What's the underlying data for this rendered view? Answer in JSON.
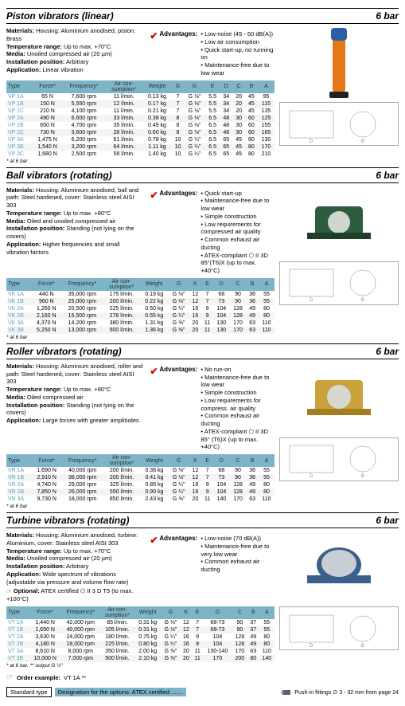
{
  "sections": [
    {
      "title": "Piston vibrators (linear)",
      "bar": "6 bar",
      "desc": [
        [
          "Materials:",
          " Housing: Aluminium anodised, piston: Brass"
        ],
        [
          "Temperature range:",
          " Up to max. +70°C"
        ],
        [
          "Media:",
          " Unoiled compressed air (20 µm)"
        ],
        [
          "Installation position:",
          " Arbitrary"
        ],
        [
          "Application:",
          " Linear vibration"
        ]
      ],
      "advantages": [
        "Low-noise (45 - 60 dB(A))",
        "Low air consumption",
        "Quick start-up, no running on",
        "Maintenance-free due to low wear"
      ],
      "headers": [
        "Type",
        "Force*",
        "Frequency*",
        "Air con-\nsumption*",
        "Weight",
        "G",
        "G",
        "E",
        "D",
        "C",
        "B",
        "A"
      ],
      "rows": [
        [
          "VP 1A",
          "65 N",
          "7,600 rpm",
          "11 l/min.",
          "0.13 kg",
          "7",
          "G ⅛\"",
          "5.5",
          "34",
          "20",
          "45",
          "95"
        ],
        [
          "VP 1B",
          "150 N",
          "5,550 rpm",
          "12 l/min.",
          "0.17 kg",
          "7",
          "G ⅛\"",
          "5.5",
          "34",
          "20",
          "45",
          "115"
        ],
        [
          "VP 1C",
          "210 N",
          "4,100 rpm",
          "11 l/min.",
          "0.21 kg",
          "7",
          "G ⅛\"",
          "5.5",
          "34",
          "20",
          "45",
          "135"
        ],
        [
          "VP 2A",
          "490 N",
          "6,600 rpm",
          "33 l/min.",
          "0.38 kg",
          "8",
          "G ⅛\"",
          "6.5",
          "48",
          "30",
          "60",
          "125"
        ],
        [
          "VP 2B",
          "650 N",
          "4,700 rpm",
          "35 l/min.",
          "0.49 kg",
          "8",
          "G ⅛\"",
          "6.5",
          "48",
          "30",
          "60",
          "155"
        ],
        [
          "VP 2C",
          "730 N",
          "3,600 rpm",
          "28 l/min.",
          "0.60 kg",
          "8",
          "G ⅛\"",
          "6.5",
          "48",
          "30",
          "60",
          "185"
        ],
        [
          "VP 3A",
          "1,475 N",
          "6,200 rpm",
          "61 l/min.",
          "0.78 kg",
          "10",
          "G ¼\"",
          "6.5",
          "65",
          "45",
          "80",
          "130"
        ],
        [
          "VP 3B",
          "1,540 N",
          "3,200 rpm",
          "64 l/min.",
          "1.11 kg",
          "10",
          "G ¼\"",
          "6.5",
          "65",
          "45",
          "80",
          "170"
        ],
        [
          "VP 3C",
          "1,680 N",
          "2,500 rpm",
          "58 l/min.",
          "1.40 kg",
          "10",
          "G ¼\"",
          "6.5",
          "65",
          "45",
          "80",
          "210"
        ]
      ],
      "footnote": "* at 6 bar"
    },
    {
      "title": "Ball vibrators (rotating)",
      "bar": "6 bar",
      "desc": [
        [
          "Materials:",
          " Housing: Aluminium anodised, ball and path: Steel hardened, cover: Stainless steel AISI 303"
        ],
        [
          "Temperature range:",
          " Up to max. +80°C"
        ],
        [
          "Media:",
          " Oiled and unoiled compressed air"
        ],
        [
          "Installation position:",
          " Standing (not lying on the covers)"
        ],
        [
          "Application:",
          " Higher frequencies and small vibration factors"
        ]
      ],
      "advantages": [
        "Quick start-up",
        "Maintenance-free due to low wear",
        "Simple construction",
        "Low requirements for compressed air quality",
        "Common exhaust air ducting",
        "ATEX-compliant ⬡ II 3D 85°(T6)X (up to max. +40°C)"
      ],
      "headers": [
        "Type",
        "Force*",
        "Frequency*",
        "Air con-\nsumption*",
        "Weight",
        "G",
        "K",
        "E",
        "D",
        "C",
        "B",
        "A"
      ],
      "rows": [
        [
          "VK 1A",
          "440 N",
          "35,000 rpm",
          "175 l/min.",
          "0.19 kg",
          "G ⅛\"",
          "12",
          "7",
          "68",
          "90",
          "36",
          "55"
        ],
        [
          "VK 1B",
          "960 N",
          "25,000 rpm",
          "200 l/min.",
          "0.22 kg",
          "G ⅛\"",
          "12",
          "7",
          "73",
          "90",
          "36",
          "55"
        ],
        [
          "VK 2A",
          "1,260 N",
          "20,500 rpm",
          "225 l/min.",
          "0.50 kg",
          "G ¼\"",
          "16",
          "9",
          "104",
          "128",
          "49",
          "80"
        ],
        [
          "VK 2B",
          "2,160 N",
          "15,500 rpm",
          "278 l/min.",
          "0.55 kg",
          "G ¼\"",
          "16",
          "9",
          "104",
          "128",
          "49",
          "80"
        ],
        [
          "VK 3A",
          "4,370 N",
          "14,200 rpm",
          "380 l/min.",
          "1.31 kg",
          "G ⅜\"",
          "20",
          "11",
          "130",
          "170",
          "63",
          "110"
        ],
        [
          "VK 3B",
          "5,250 N",
          "13,000 rpm",
          "500 l/min.",
          "1.36 kg",
          "G ⅜\"",
          "20",
          "11",
          "130",
          "170",
          "63",
          "110"
        ]
      ],
      "footnote": "* at 6 bar"
    },
    {
      "title": "Roller vibrators (rotating)",
      "bar": "6 bar",
      "desc": [
        [
          "Materials:",
          " Housing: Aluminium anodised, roller and path: Steel hardened, cover: Stainless steel AISI 303"
        ],
        [
          "Temperature range:",
          " Up to max. +80°C"
        ],
        [
          "Media:",
          " Oiled compressed air"
        ],
        [
          "Installation position:",
          " Standing (not lying on the covers)"
        ],
        [
          "Application:",
          " Large forces with greater amplitudes"
        ]
      ],
      "advantages": [
        "No run-on",
        "Maintenance-free due to low wear",
        "Simple construction",
        "Low requirements for compress. air quality",
        "Common exhaust air ducting",
        "ATEX-compliant ⬡ II 3D 85° (T6)X (up to max. +40°C)"
      ],
      "headers": [
        "Type",
        "Force*",
        "Frequency*",
        "Air con-\nsumption*",
        "Weight",
        "G",
        "K",
        "E",
        "D",
        "C",
        "B",
        "A"
      ],
      "rows": [
        [
          "VR 1A",
          "1,690 N",
          "40,000 rpm",
          "200 l/min.",
          "0.36 kg",
          "G ⅛\"",
          "12",
          "7",
          "68",
          "90",
          "36",
          "55"
        ],
        [
          "VR 1B",
          "2,910 N",
          "38,000 rpm",
          "200 l/min.",
          "0.41 kg",
          "G ⅛\"",
          "12",
          "7",
          "73",
          "90",
          "36",
          "55"
        ],
        [
          "VR 2A",
          "4,740 N",
          "29,000 rpm",
          "325 l/min.",
          "0.85 kg",
          "G ¼\"",
          "16",
          "9",
          "104",
          "128",
          "49",
          "80"
        ],
        [
          "VR 2B",
          "7,850 N",
          "26,000 rpm",
          "550 l/min.",
          "0.90 kg",
          "G ¼\"",
          "16",
          "9",
          "104",
          "128",
          "49",
          "80"
        ],
        [
          "VR 3A",
          "9,730 N",
          "18,000 rpm",
          "850 l/min.",
          "2.43 kg",
          "G ⅜\"",
          "20",
          "11",
          "140",
          "170",
          "63",
          "110"
        ]
      ],
      "footnote": "* at 6 bar"
    },
    {
      "title": "Turbine vibrators (rotating)",
      "bar": "6 bar",
      "desc": [
        [
          "Materials:",
          " Housing: Aluminium anodised, turbine: Aluminium, cover: Stainless steel AISI 303"
        ],
        [
          "Temperature range:",
          " Up to max. +70°C"
        ],
        [
          "Media:",
          " Unoiled compressed air (20 µm)"
        ],
        [
          "Installation position:",
          " Arbitrary"
        ],
        [
          "Application:",
          " Wide spectrum of vibrations (adjustable via pressure and volume flow rate)"
        ]
      ],
      "advantages": [
        "Low-noise (70 dB(A))",
        "Maintenance-free due to very low wear",
        "Common exhaust air ducting"
      ],
      "optional": "Optional: ATEX certified ⬡ II 3 D T5 (to max. +100°C)",
      "headers": [
        "Type",
        "Force*",
        "Frequency*",
        "Air con-\nsumption*",
        "Weight",
        "G",
        "K",
        "E",
        "D",
        "C",
        "B",
        "A"
      ],
      "rows": [
        [
          "VT 1A",
          "1,440 N",
          "42,000 rpm",
          "85 l/min.",
          "0.31 kg",
          "G ⅛\"",
          "12",
          "7",
          "68-73",
          "90",
          "37",
          "55"
        ],
        [
          "VT 1B",
          "1,650 N",
          "40,000 rpm",
          "105 l/min.",
          "0.31 kg",
          "G ⅛\"",
          "12",
          "7",
          "68-73",
          "90",
          "37",
          "55"
        ],
        [
          "VT 2A",
          "3,630 N",
          "24,000 rpm",
          "180 l/min.",
          "0.75 kg",
          "G ¼\"",
          "16",
          "9",
          "104",
          "128",
          "49",
          "80"
        ],
        [
          "VT 2B",
          "4,180 N",
          "18,000 rpm",
          "225 l/min.",
          "0.80 kg",
          "G ¼\"",
          "16",
          "9",
          "104",
          "128",
          "49",
          "80"
        ],
        [
          "VT 3A",
          "8,610 N",
          "8,000 rpm",
          "350 l/min.",
          "2.00 kg",
          "G ⅜\"",
          "20",
          "11",
          "130-140",
          "170",
          "63",
          "110"
        ],
        [
          "VT 3B",
          "10,000 N",
          "7,000 rpm",
          "500 l/min.",
          "2.10 kg",
          "G ⅜\"",
          "20",
          "11",
          "170",
          "200",
          "80",
          "140"
        ]
      ],
      "footnote": "* at 6 bar, ** output G ½\""
    }
  ],
  "order": {
    "example_label": "Order example:",
    "example_value": "VT 1A **",
    "standard": "Standard type",
    "designation": "Designation for the options: ATEX certified .......",
    "pushin": "Push-in fittings ∅ 3 - 32 mm from page 24"
  }
}
